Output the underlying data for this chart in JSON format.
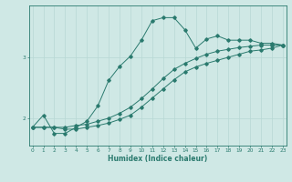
{
  "xlabel": "Humidex (Indice chaleur)",
  "bg_color": "#cfe8e5",
  "line_color": "#2a7a6e",
  "grid_color": "#b8d8d4",
  "x_values": [
    0,
    1,
    2,
    3,
    4,
    5,
    6,
    7,
    8,
    9,
    10,
    11,
    12,
    13,
    14,
    15,
    16,
    17,
    18,
    19,
    20,
    21,
    22,
    23
  ],
  "line1": [
    1.85,
    2.05,
    1.75,
    1.75,
    1.85,
    1.95,
    2.2,
    2.62,
    2.85,
    3.02,
    3.28,
    3.6,
    3.65,
    3.65,
    3.45,
    3.15,
    3.3,
    3.35,
    3.28,
    3.28,
    3.28,
    3.23,
    3.23,
    3.2
  ],
  "line2": [
    1.85,
    1.85,
    1.85,
    1.85,
    1.88,
    1.9,
    1.95,
    2.0,
    2.08,
    2.18,
    2.32,
    2.48,
    2.65,
    2.8,
    2.9,
    2.98,
    3.05,
    3.1,
    3.13,
    3.16,
    3.18,
    3.2,
    3.2,
    3.2
  ],
  "line3": [
    1.85,
    1.85,
    1.85,
    1.82,
    1.82,
    1.85,
    1.88,
    1.92,
    1.98,
    2.05,
    2.18,
    2.33,
    2.48,
    2.63,
    2.76,
    2.84,
    2.9,
    2.95,
    3.0,
    3.05,
    3.1,
    3.12,
    3.15,
    3.2
  ],
  "yticks": [
    2,
    3
  ],
  "xticks": [
    0,
    1,
    2,
    3,
    4,
    5,
    6,
    7,
    8,
    9,
    10,
    11,
    12,
    13,
    14,
    15,
    16,
    17,
    18,
    19,
    20,
    21,
    22,
    23
  ],
  "xlim": [
    -0.3,
    23.3
  ],
  "ylim": [
    1.55,
    3.85
  ]
}
